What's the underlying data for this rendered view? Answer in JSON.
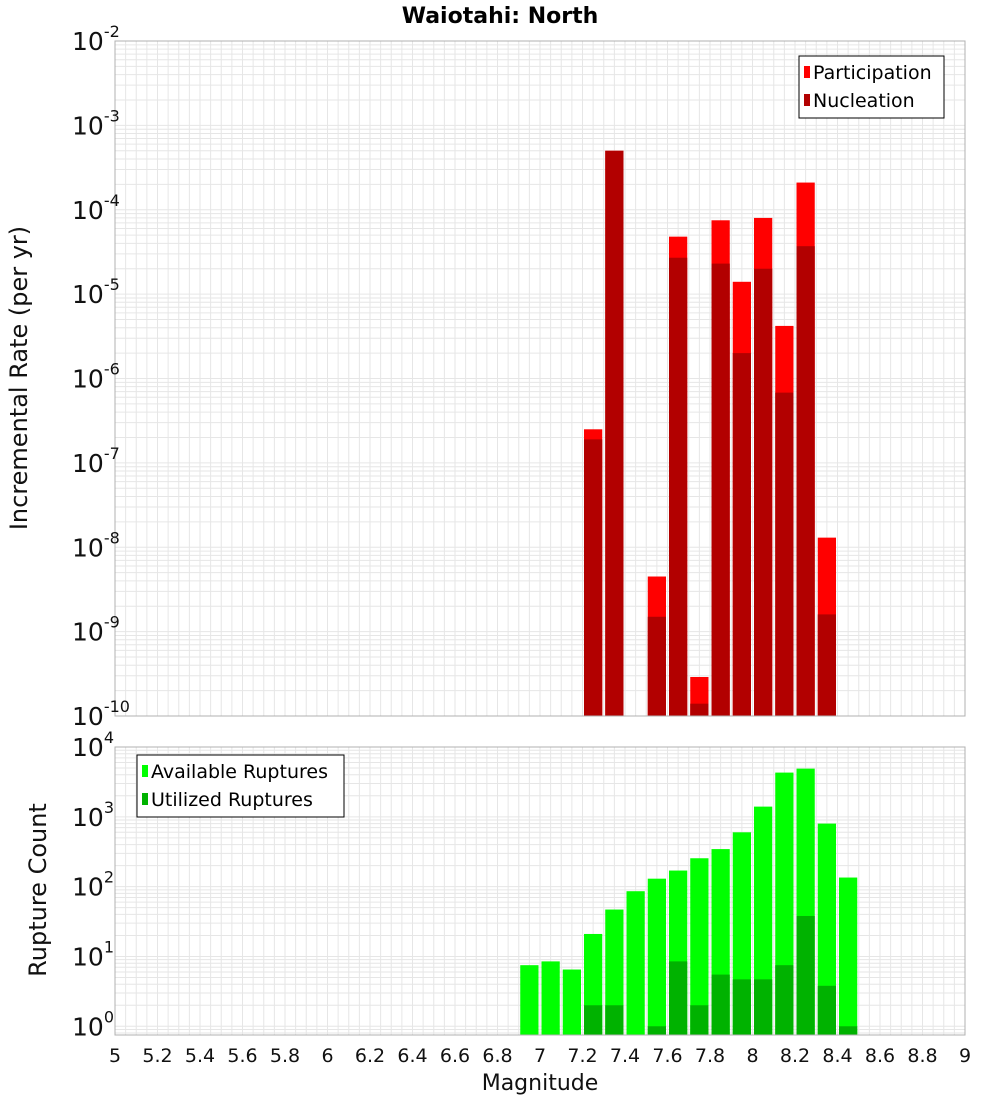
{
  "chart_data": [
    {
      "type": "bar",
      "title": "Waiotahi: North",
      "xlabel": "",
      "ylabel": "Incremental Rate (per yr)",
      "yscale": "log",
      "ylim": [
        1e-10,
        0.01
      ],
      "xlim": [
        5,
        9
      ],
      "grid": true,
      "legend": "top-right",
      "x": [
        7.25,
        7.35,
        7.45,
        7.55,
        7.65,
        7.75,
        7.85,
        7.95,
        8.05,
        8.15,
        8.25,
        8.35
      ],
      "series": [
        {
          "name": "Participation",
          "color": "#ff0000",
          "values": [
            2.5e-07,
            0.0005,
            null,
            4.5e-09,
            4.8e-05,
            2.9e-10,
            7.5e-05,
            1.4e-05,
            8e-05,
            4.2e-06,
            0.00021,
            1.3e-08
          ]
        },
        {
          "name": "Nucleation",
          "color": "#b20000",
          "values": [
            1.9e-07,
            0.0005,
            null,
            1.5e-09,
            2.7e-05,
            1.4e-10,
            2.3e-05,
            2e-06,
            2e-05,
            6.8e-07,
            3.7e-05,
            1.6e-09
          ]
        }
      ]
    },
    {
      "type": "bar",
      "title": "",
      "xlabel": "Magnitude",
      "ylabel": "Rupture Count",
      "yscale": "log",
      "ylim": [
        0.75,
        10000
      ],
      "xlim": [
        5,
        9
      ],
      "grid": true,
      "legend": "top-left",
      "x": [
        6.95,
        7.05,
        7.15,
        7.25,
        7.35,
        7.45,
        7.55,
        7.65,
        7.75,
        7.85,
        7.95,
        8.05,
        8.15,
        8.25,
        8.35,
        8.45
      ],
      "series": [
        {
          "name": "Available Ruptures",
          "color": "#00ff00",
          "values": [
            7.5,
            8.5,
            6.5,
            21,
            47,
            86,
            130,
            170,
            255,
            345,
            600,
            1400,
            4300,
            4900,
            800,
            135
          ]
        },
        {
          "name": "Utilized Ruptures",
          "color": "#00b200",
          "values": [
            null,
            null,
            null,
            2,
            2,
            null,
            1,
            8.5,
            2,
            5.5,
            4.7,
            4.7,
            7.5,
            38,
            3.8,
            1
          ]
        }
      ]
    }
  ],
  "xticks": [
    "5",
    "5.2",
    "5.4",
    "5.6",
    "5.8",
    "6",
    "6.2",
    "6.4",
    "6.6",
    "6.8",
    "7",
    "7.2",
    "7.4",
    "7.6",
    "7.8",
    "8",
    "8.2",
    "8.4",
    "8.6",
    "8.8",
    "9"
  ],
  "top_yticks": [
    {
      "base": "10",
      "exp": "-10"
    },
    {
      "base": "10",
      "exp": "-9"
    },
    {
      "base": "10",
      "exp": "-8"
    },
    {
      "base": "10",
      "exp": "-7"
    },
    {
      "base": "10",
      "exp": "-6"
    },
    {
      "base": "10",
      "exp": "-5"
    },
    {
      "base": "10",
      "exp": "-4"
    },
    {
      "base": "10",
      "exp": "-3"
    },
    {
      "base": "10",
      "exp": "-2"
    }
  ],
  "bottom_yticks": [
    {
      "base": "10",
      "exp": "0"
    },
    {
      "base": "10",
      "exp": "1"
    },
    {
      "base": "10",
      "exp": "2"
    },
    {
      "base": "10",
      "exp": "3"
    },
    {
      "base": "10",
      "exp": "4"
    }
  ]
}
